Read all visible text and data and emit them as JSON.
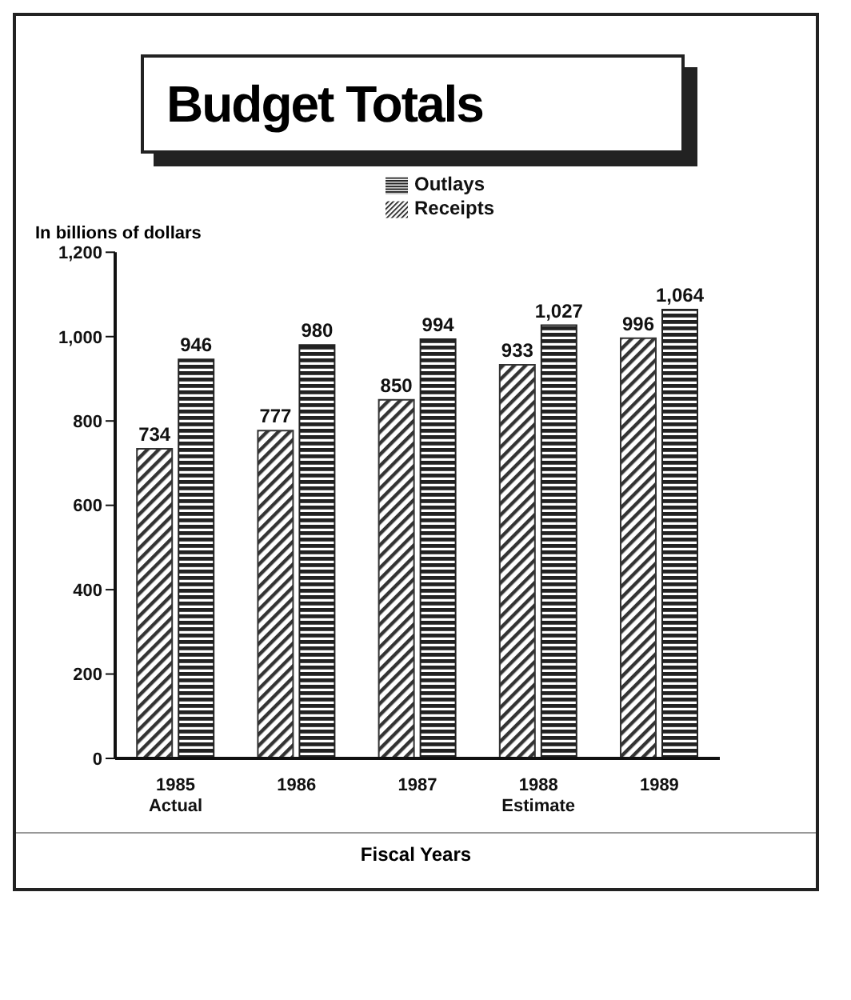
{
  "chart_data": {
    "type": "bar",
    "title": "Budget Totals",
    "ylabel": "In billions of dollars",
    "xlabel": "Fiscal Years",
    "categories": [
      "1985\nActual",
      "1986",
      "1987",
      "1988\nEstimate",
      "1989"
    ],
    "series": [
      {
        "name": "Receipts",
        "color": "#333333",
        "values": [
          734,
          777,
          850,
          933,
          996
        ],
        "value_labels": [
          "734",
          "777",
          "850",
          "933",
          "996"
        ]
      },
      {
        "name": "Outlays",
        "color": "#222222",
        "values": [
          946,
          980,
          994,
          1027,
          1064
        ],
        "value_labels": [
          "946",
          "980",
          "994",
          "1,027",
          "1,064"
        ]
      }
    ],
    "ylim": [
      0,
      1200
    ],
    "yticks": [
      0,
      200,
      400,
      600,
      800,
      {
        "value": 1000,
        "label": "1,000"
      },
      {
        "value": 1200,
        "label": "1,200"
      }
    ],
    "legend": "top",
    "grid": false
  }
}
